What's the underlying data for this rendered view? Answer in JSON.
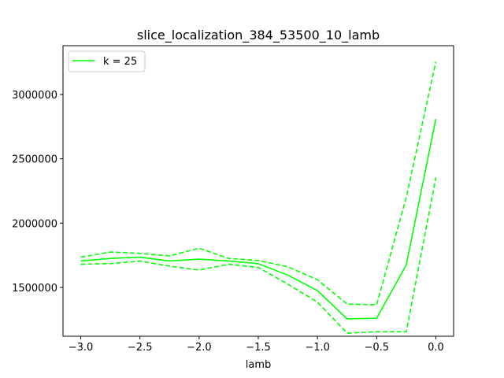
{
  "chart_data": {
    "type": "line",
    "title": "slice_localization_384_53500_10_lamb",
    "xlabel": "lamb",
    "ylabel": "",
    "xlim": [
      -3.15,
      0.15
    ],
    "ylim": [
      1120000,
      3380000
    ],
    "xticks": [
      -3.0,
      -2.5,
      -2.0,
      -1.5,
      -1.0,
      -0.5,
      0.0
    ],
    "xtick_labels": [
      "−3.0",
      "−2.5",
      "−2.0",
      "−1.5",
      "−1.0",
      "−0.5",
      "0.0"
    ],
    "yticks": [
      1500000,
      2000000,
      2500000,
      3000000
    ],
    "ytick_labels": [
      "1500000",
      "2000000",
      "2500000",
      "3000000"
    ],
    "grid": false,
    "legend_position": "upper-left",
    "color": "#00ff00",
    "x": [
      -3.0,
      -2.75,
      -2.5,
      -2.25,
      -2.0,
      -1.75,
      -1.5,
      -1.25,
      -1.0,
      -0.75,
      -0.5,
      -0.25,
      0.0
    ],
    "series": [
      {
        "name": "k = 25",
        "style": "solid",
        "values": [
          1705000,
          1725000,
          1735000,
          1705000,
          1720000,
          1705000,
          1685000,
          1595000,
          1475000,
          1255000,
          1260000,
          1675000,
          2810000
        ]
      },
      {
        "style": "dashed",
        "values": [
          1735000,
          1775000,
          1765000,
          1745000,
          1805000,
          1725000,
          1710000,
          1660000,
          1560000,
          1370000,
          1365000,
          2200000,
          3255000
        ]
      },
      {
        "style": "dashed",
        "values": [
          1680000,
          1685000,
          1705000,
          1665000,
          1635000,
          1680000,
          1655000,
          1525000,
          1385000,
          1145000,
          1155000,
          1155000,
          2355000
        ]
      }
    ]
  }
}
